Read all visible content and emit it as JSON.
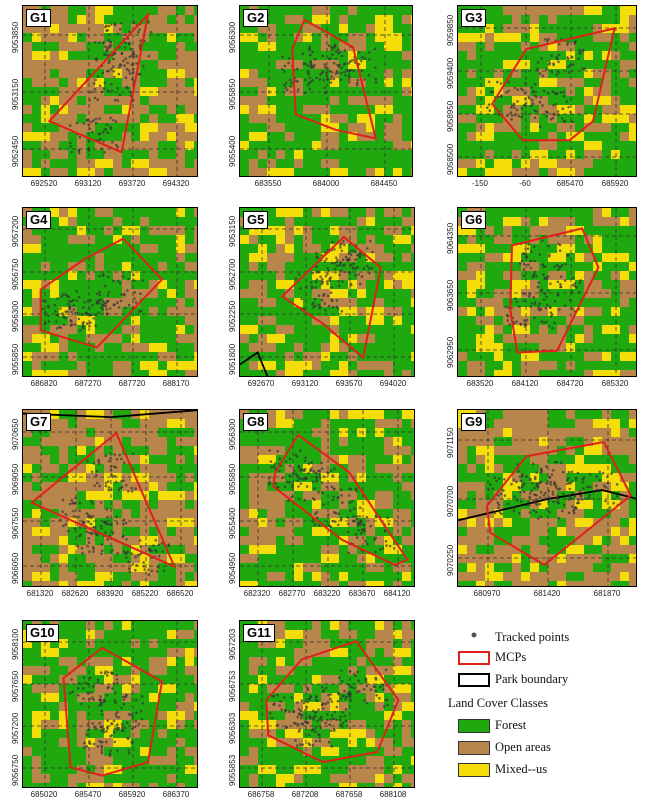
{
  "colors": {
    "forest": "#1fa90f",
    "open": "#b8854a",
    "mixed": "#f5dd0a",
    "mcp": "#e0201a",
    "boundary": "#000000",
    "points": "#333333"
  },
  "panels": [
    {
      "id": "G1",
      "xticks": [
        "692520",
        "693120",
        "693720",
        "694320"
      ],
      "yticks": [
        "9053850",
        "9053150",
        "9052450"
      ]
    },
    {
      "id": "G2",
      "xticks": [
        "683550",
        "684000",
        "684450"
      ],
      "yticks": [
        "9056300",
        "9055850",
        "9055400"
      ]
    },
    {
      "id": "G3",
      "xticks": [
        "-150",
        "-60",
        "685470",
        "685920"
      ],
      "yticks": [
        "9059850",
        "9059400",
        "9058950",
        "9058500"
      ]
    },
    {
      "id": "G4",
      "xticks": [
        "686820",
        "687270",
        "687720",
        "688170"
      ],
      "yticks": [
        "9057200",
        "9056750",
        "9056300",
        "9055850"
      ]
    },
    {
      "id": "G5",
      "xticks": [
        "692670",
        "693120",
        "693570",
        "694020"
      ],
      "yticks": [
        "9053150",
        "9052700",
        "9052250",
        "9051800"
      ]
    },
    {
      "id": "G6",
      "xticks": [
        "683520",
        "684120",
        "684720",
        "685320"
      ],
      "yticks": [
        "9064350",
        "9063650",
        "9062950"
      ]
    },
    {
      "id": "G7",
      "xticks": [
        "681320",
        "682620",
        "683920",
        "685220",
        "686520"
      ],
      "yticks": [
        "9070650",
        "9069050",
        "9067550",
        "9066050"
      ]
    },
    {
      "id": "G8",
      "xticks": [
        "682320",
        "682770",
        "683220",
        "683670",
        "684120"
      ],
      "yticks": [
        "9056300",
        "9055850",
        "9055400",
        "9054950"
      ]
    },
    {
      "id": "G9",
      "xticks": [
        "680970",
        "681420",
        "681870"
      ],
      "yticks": [
        "9071150",
        "9070700",
        "9070250"
      ]
    },
    {
      "id": "G10",
      "xticks": [
        "685020",
        "685470",
        "685920",
        "686370"
      ],
      "yticks": [
        "9058100",
        "9057650",
        "9057200",
        "9056750"
      ]
    },
    {
      "id": "G11",
      "xticks": [
        "686758",
        "687208",
        "687658",
        "688108"
      ],
      "yticks": [
        "9057203",
        "9056753",
        "9056303",
        "9055853"
      ]
    }
  ],
  "legend": {
    "tracked": "Tracked points",
    "mcps": "MCPs",
    "park": "Park boundary",
    "classes_title": "Land Cover Classes",
    "forest": "Forest",
    "open": "Open areas",
    "mixed": "Mixed--us"
  }
}
